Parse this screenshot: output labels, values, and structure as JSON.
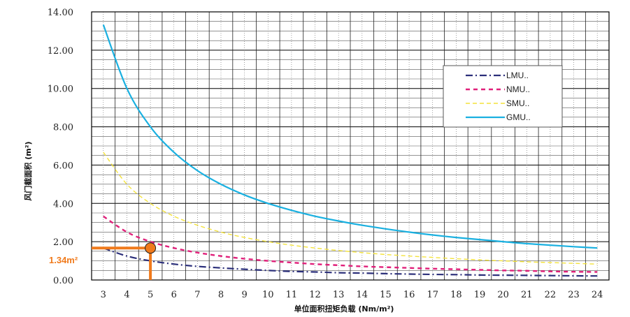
{
  "chart_data": {
    "type": "line",
    "xlabel": "单位面积扭矩负载 (Nm/m²)",
    "ylabel": "风门截面积 (m²)",
    "x": [
      3,
      4,
      5,
      6,
      7,
      8,
      9,
      10,
      11,
      12,
      13,
      14,
      15,
      16,
      17,
      18,
      19,
      20,
      21,
      22,
      23,
      24
    ],
    "xlim": [
      2.5,
      24.5
    ],
    "ylim": [
      0,
      14
    ],
    "y_ticks": [
      "0.00",
      "2.00",
      "4.00",
      "6.00",
      "8.00",
      "10.00",
      "12.00",
      "14.00"
    ],
    "x_ticks": [
      "3",
      "4",
      "5",
      "6",
      "7",
      "8",
      "9",
      "10",
      "11",
      "12",
      "13",
      "14",
      "15",
      "16",
      "17",
      "18",
      "19",
      "20",
      "21",
      "22",
      "23",
      "24"
    ],
    "grid": true,
    "legend_position": "top-right",
    "series": [
      {
        "name": "LMU..",
        "style": "dashdot",
        "color": "#2b2f7a",
        "values": [
          1.67,
          1.25,
          1.0,
          0.83,
          0.71,
          0.63,
          0.56,
          0.5,
          0.45,
          0.42,
          0.38,
          0.36,
          0.33,
          0.31,
          0.29,
          0.28,
          0.26,
          0.25,
          0.24,
          0.23,
          0.22,
          0.21
        ]
      },
      {
        "name": "NMU..",
        "style": "dashed",
        "color": "#e0207a",
        "values": [
          3.33,
          2.5,
          2.0,
          1.67,
          1.43,
          1.25,
          1.11,
          1.0,
          0.91,
          0.83,
          0.77,
          0.71,
          0.67,
          0.63,
          0.59,
          0.56,
          0.53,
          0.5,
          0.48,
          0.45,
          0.43,
          0.42
        ]
      },
      {
        "name": "SMU..",
        "style": "dashed-light",
        "color": "#f3e23a",
        "values": [
          6.67,
          5.0,
          4.0,
          3.33,
          2.86,
          2.5,
          2.22,
          2.0,
          1.82,
          1.67,
          1.54,
          1.43,
          1.33,
          1.25,
          1.18,
          1.11,
          1.05,
          1.0,
          0.95,
          0.91,
          0.87,
          0.83
        ]
      },
      {
        "name": "GMU..",
        "style": "solid",
        "color": "#1ab0e0",
        "values": [
          13.33,
          10.0,
          8.0,
          6.67,
          5.71,
          5.0,
          4.44,
          4.0,
          3.64,
          3.33,
          3.08,
          2.86,
          2.67,
          2.5,
          2.35,
          2.22,
          2.11,
          2.0,
          1.9,
          1.82,
          1.74,
          1.67
        ]
      }
    ],
    "annotation": {
      "label": "1.34m²",
      "x": 5,
      "y": 1.67,
      "color": "#f07a1c"
    }
  }
}
